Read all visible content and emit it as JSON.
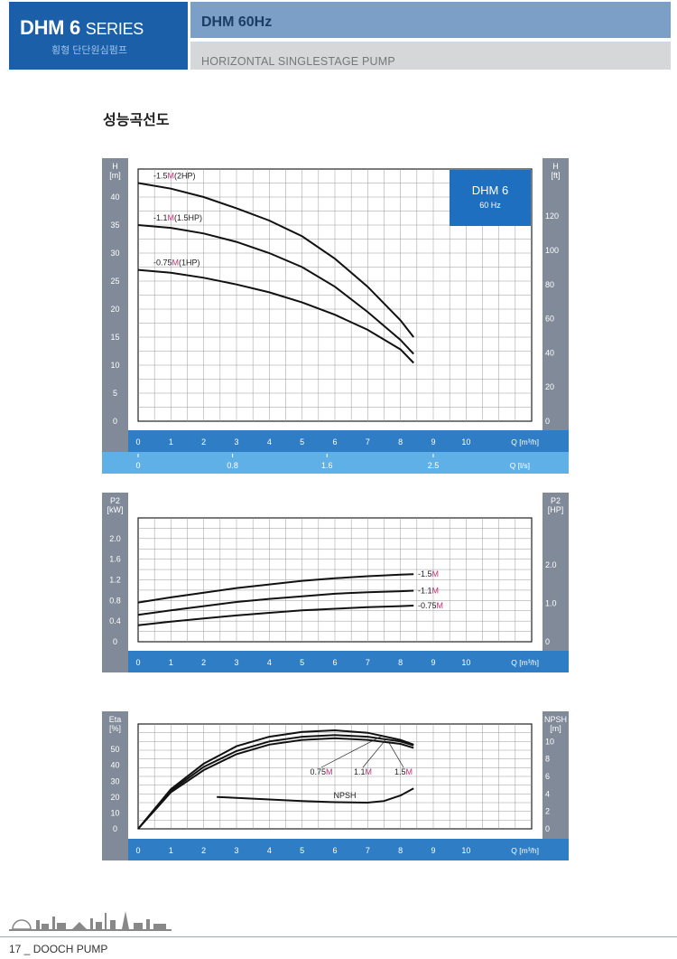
{
  "header": {
    "series_main": "DHM 6",
    "series_word": "SERIES",
    "korean": "횡형 단단원심펌프",
    "model_title": "DHM 60Hz",
    "description": "HORIZONTAL SINGLESTAGE PUMP"
  },
  "section_title": "성능곡선도",
  "footer": {
    "page": "17 _ DOOCH PUMP"
  },
  "colors": {
    "axis_bar": "#2f7dc4",
    "side_bar": "#808a98",
    "accent_magenta": "#c0307a",
    "curve": "#111111",
    "badge": "#1e6fbf",
    "lps_bar": "#5fb0e6"
  },
  "chart_data": [
    {
      "type": "line",
      "id": "head",
      "badge": {
        "title": "DHM 6",
        "subtitle": "60 Hz"
      },
      "y_left_label": [
        "H",
        "[m]"
      ],
      "y_right_label": [
        "H",
        "[ft]"
      ],
      "y_left_ticks": [
        "0",
        "5",
        "10",
        "15",
        "20",
        "25",
        "30",
        "35",
        "40"
      ],
      "y_right_ticks": [
        "0",
        "20",
        "40",
        "60",
        "80",
        "100",
        "120"
      ],
      "x_ticks": [
        "0",
        "1",
        "2",
        "3",
        "4",
        "5",
        "6",
        "7",
        "8",
        "9",
        "10"
      ],
      "x_label": "Q [m³/h]",
      "x2_ticks": [
        "0",
        "0.8",
        "1.6",
        "2.5"
      ],
      "x2_label": "Q [l/s]",
      "xlim": [
        0,
        12
      ],
      "ylim": [
        0,
        45
      ],
      "series": [
        {
          "name": "-1.5M(2HP)",
          "label_pre": "-1.5",
          "label_mag": "M",
          "label_post": "(2HP)",
          "x": [
            0,
            1,
            2,
            3,
            4,
            5,
            6,
            7,
            8,
            8.4
          ],
          "y": [
            42.5,
            41.5,
            40,
            38,
            35.8,
            33,
            29,
            24,
            18,
            15
          ]
        },
        {
          "name": "-1.1M(1.5HP)",
          "label_pre": "-1.1",
          "label_mag": "M",
          "label_post": "(1.5HP)",
          "x": [
            0,
            1,
            2,
            3,
            4,
            5,
            6,
            7,
            8,
            8.4
          ],
          "y": [
            35,
            34.5,
            33.5,
            32,
            30,
            27.5,
            24,
            19.5,
            14.5,
            12
          ]
        },
        {
          "name": "-0.75M(1HP)",
          "label_pre": "-0.75",
          "label_mag": "M",
          "label_post": "(1HP)",
          "x": [
            0,
            1,
            2,
            3,
            4,
            5,
            6,
            7,
            8,
            8.4
          ],
          "y": [
            27,
            26.5,
            25.6,
            24.4,
            23,
            21.2,
            19,
            16.3,
            12.8,
            10.4
          ]
        }
      ]
    },
    {
      "type": "line",
      "id": "power",
      "y_left_label": [
        "P2",
        "[kW]"
      ],
      "y_right_label": [
        "P2",
        "[HP]"
      ],
      "y_left_ticks": [
        "0",
        "0.4",
        "0.8",
        "1.2",
        "1.6",
        "2.0"
      ],
      "y_right_ticks": [
        "0",
        "1.0",
        "2.0"
      ],
      "x_ticks": [
        "0",
        "1",
        "2",
        "3",
        "4",
        "5",
        "6",
        "7",
        "8",
        "9",
        "10"
      ],
      "x_label": "Q [m³/h]",
      "xlim": [
        0,
        12
      ],
      "ylim": [
        0,
        2.4
      ],
      "series": [
        {
          "name": "-1.5M",
          "label_pre": "-1.5",
          "label_mag": "M",
          "label_post": "",
          "x": [
            0,
            1,
            2,
            3,
            4,
            5,
            6,
            7,
            8,
            8.4
          ],
          "y": [
            0.76,
            0.86,
            0.95,
            1.04,
            1.11,
            1.18,
            1.23,
            1.27,
            1.3,
            1.31
          ]
        },
        {
          "name": "-1.1M",
          "label_pre": "-1.1",
          "label_mag": "M",
          "label_post": "",
          "x": [
            0,
            1,
            2,
            3,
            4,
            5,
            6,
            7,
            8,
            8.4
          ],
          "y": [
            0.52,
            0.61,
            0.69,
            0.77,
            0.83,
            0.88,
            0.93,
            0.96,
            0.98,
            0.99
          ]
        },
        {
          "name": "-0.75M",
          "label_pre": "-0.75",
          "label_mag": "M",
          "label_post": "",
          "x": [
            0,
            1,
            2,
            3,
            4,
            5,
            6,
            7,
            8,
            8.4
          ],
          "y": [
            0.32,
            0.39,
            0.45,
            0.51,
            0.56,
            0.61,
            0.64,
            0.67,
            0.69,
            0.7
          ]
        }
      ]
    },
    {
      "type": "line",
      "id": "efficiency",
      "y_left_label": [
        "Eta",
        "[%]"
      ],
      "y_right_label": [
        "NPSH",
        "[m]"
      ],
      "y_left_ticks": [
        "0",
        "10",
        "20",
        "30",
        "40",
        "50"
      ],
      "y_right_ticks": [
        "0",
        "2",
        "4",
        "6",
        "8",
        "10"
      ],
      "x_ticks": [
        "0",
        "1",
        "2",
        "3",
        "4",
        "5",
        "6",
        "7",
        "8",
        "9",
        "10"
      ],
      "x_label": "Q [m³/h]",
      "xlim": [
        0,
        12
      ],
      "ylim": [
        0,
        66
      ],
      "series": [
        {
          "name": "0.75M",
          "label_pre": "0.75",
          "label_mag": "M",
          "label_post": "",
          "x": [
            0,
            1,
            2,
            3,
            4,
            5,
            6,
            7,
            8,
            8.4
          ],
          "y": [
            0,
            25,
            41,
            52,
            58,
            61,
            62,
            60.5,
            56,
            53
          ]
        },
        {
          "name": "1.1M",
          "label_pre": "1.1",
          "label_mag": "M",
          "label_post": "",
          "x": [
            0,
            1,
            2,
            3,
            4,
            5,
            6,
            7,
            8,
            8.4
          ],
          "y": [
            0,
            24,
            39,
            49,
            55,
            58,
            59,
            58,
            55,
            52.5
          ]
        },
        {
          "name": "1.5M",
          "label_pre": "1.5",
          "label_mag": "M",
          "label_post": "",
          "x": [
            0,
            1,
            2,
            3,
            4,
            5,
            6,
            7,
            8,
            8.4
          ],
          "y": [
            0,
            23,
            37,
            47,
            53,
            56,
            57,
            56,
            53.5,
            51
          ]
        }
      ],
      "npsh": {
        "name": "NPSH",
        "x": [
          2.4,
          3,
          4,
          5,
          6,
          7,
          7.5,
          8,
          8.4
        ],
        "y": [
          20,
          19.5,
          18.5,
          17.5,
          16.8,
          16.5,
          17.5,
          21,
          25.5
        ]
      }
    }
  ]
}
